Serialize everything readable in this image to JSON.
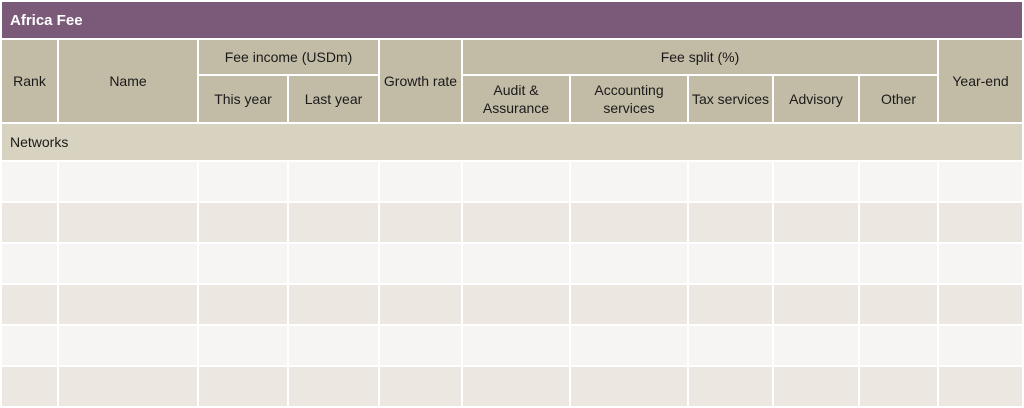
{
  "header": {
    "title": "Africa Fee"
  },
  "table": {
    "columns": [
      {
        "id": "rank",
        "label": "Rank"
      },
      {
        "id": "name",
        "label": "Name"
      },
      {
        "id": "this_year",
        "label": "This year"
      },
      {
        "id": "last_year",
        "label": "Last year"
      },
      {
        "id": "growth_rate",
        "label": "Growth rate"
      },
      {
        "id": "audit_assurance",
        "label": "Audit & Assurance"
      },
      {
        "id": "accounting_services",
        "label": "Accounting services"
      },
      {
        "id": "tax_services",
        "label": "Tax services"
      },
      {
        "id": "advisory",
        "label": "Advisory"
      },
      {
        "id": "other",
        "label": "Other"
      },
      {
        "id": "year_end",
        "label": "Year-end"
      }
    ],
    "groups": [
      {
        "id": "fee_income",
        "label": "Fee income (USDm)",
        "spans": [
          "this_year",
          "last_year"
        ]
      },
      {
        "id": "fee_split",
        "label": "Fee split (%)",
        "spans": [
          "audit_assurance",
          "accounting_services",
          "tax_services",
          "advisory",
          "other"
        ]
      }
    ],
    "sections": [
      {
        "label": "Networks"
      }
    ],
    "body_rows": 6,
    "body_cells_text": ""
  },
  "colors": {
    "title_bar_bg": "#7b5a79",
    "title_bar_text": "#ffffff",
    "header_bg": "#c2bba6",
    "header_text": "#1a1a1a",
    "section_row_bg": "#d8d2c1",
    "row_light_bg": "#f6f5f3",
    "row_dark_bg": "#ece7e0",
    "grid_line": "#ffffff"
  }
}
